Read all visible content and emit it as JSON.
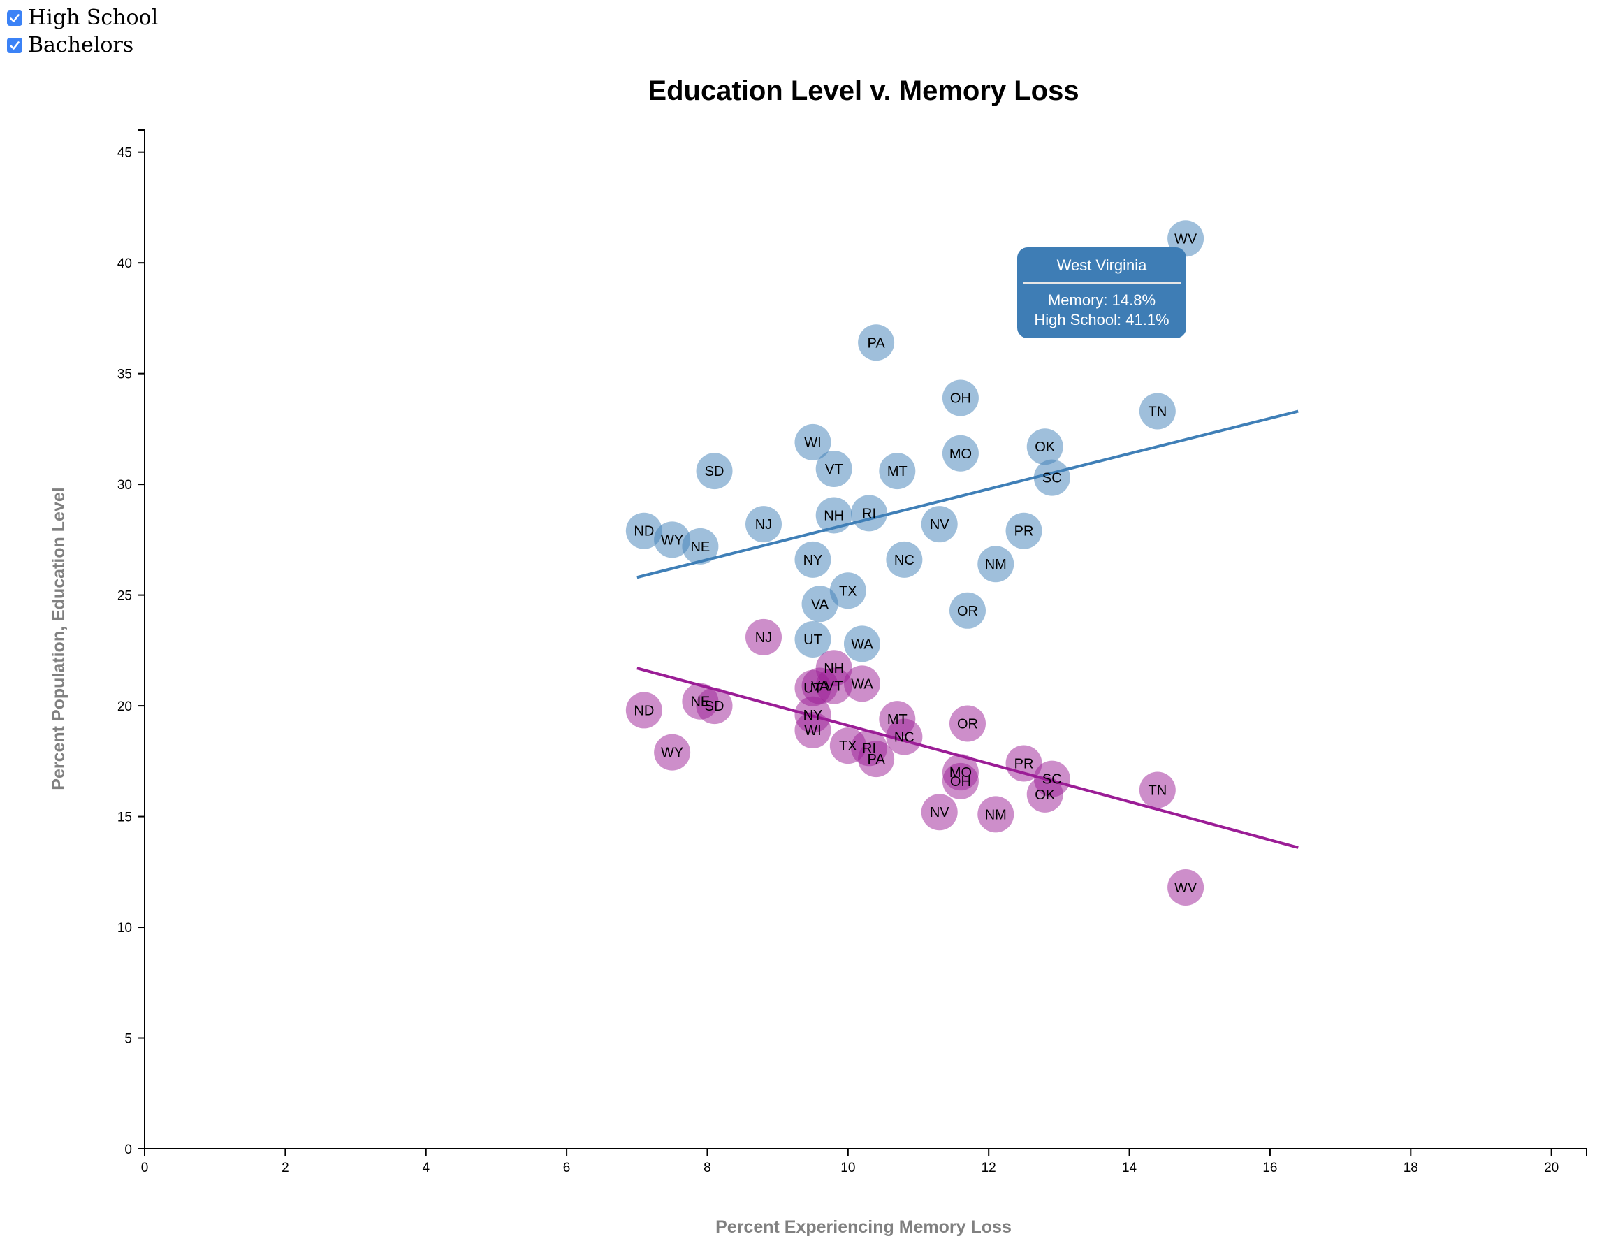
{
  "controls": [
    {
      "label": "High School",
      "checked": true
    },
    {
      "label": "Bachelors",
      "checked": true
    }
  ],
  "colors": {
    "high_school": "#3f7fb7",
    "bachelors": "#9b1d96",
    "axis": "#000000",
    "tooltip_bg": "#3e7db5"
  },
  "tooltip": {
    "title": "West Virginia",
    "line1": "Memory: 14.8%",
    "line2": "High School: 41.1%"
  },
  "chart_data": {
    "type": "scatter",
    "title": "Education Level v. Memory Loss",
    "xlabel": "Percent Experiencing Memory Loss",
    "ylabel": "Percent Population, Education Level",
    "xlim": [
      0,
      20.5
    ],
    "ylim": [
      0,
      46
    ],
    "x_ticks": [
      0,
      2,
      4,
      6,
      8,
      10,
      12,
      14,
      16,
      18,
      20
    ],
    "y_ticks": [
      0,
      5,
      10,
      15,
      20,
      25,
      30,
      35,
      40,
      45
    ],
    "grid": false,
    "series": [
      {
        "name": "High School",
        "color": "#3f7fb7",
        "trendline": [
          [
            7.0,
            25.8
          ],
          [
            16.4,
            33.3
          ]
        ],
        "points": [
          {
            "label": "WV",
            "x": 14.8,
            "y": 41.1
          },
          {
            "label": "PA",
            "x": 10.4,
            "y": 36.4
          },
          {
            "label": "OH",
            "x": 11.6,
            "y": 33.9
          },
          {
            "label": "TN",
            "x": 14.4,
            "y": 33.3
          },
          {
            "label": "WI",
            "x": 9.5,
            "y": 31.9
          },
          {
            "label": "OK",
            "x": 12.8,
            "y": 31.7
          },
          {
            "label": "MO",
            "x": 11.6,
            "y": 31.4
          },
          {
            "label": "SD",
            "x": 8.1,
            "y": 30.6
          },
          {
            "label": "VT",
            "x": 9.8,
            "y": 30.7
          },
          {
            "label": "MT",
            "x": 10.7,
            "y": 30.6
          },
          {
            "label": "SC",
            "x": 12.9,
            "y": 30.3
          },
          {
            "label": "NH",
            "x": 9.8,
            "y": 28.6
          },
          {
            "label": "RI",
            "x": 10.3,
            "y": 28.7
          },
          {
            "label": "NJ",
            "x": 8.8,
            "y": 28.2
          },
          {
            "label": "NV",
            "x": 11.3,
            "y": 28.2
          },
          {
            "label": "ND",
            "x": 7.1,
            "y": 27.9
          },
          {
            "label": "PR",
            "x": 12.5,
            "y": 27.9
          },
          {
            "label": "WY",
            "x": 7.5,
            "y": 27.5
          },
          {
            "label": "NE",
            "x": 7.9,
            "y": 27.2
          },
          {
            "label": "NY",
            "x": 9.5,
            "y": 26.6
          },
          {
            "label": "NC",
            "x": 10.8,
            "y": 26.6
          },
          {
            "label": "NM",
            "x": 12.1,
            "y": 26.4
          },
          {
            "label": "TX",
            "x": 10.0,
            "y": 25.2
          },
          {
            "label": "VA",
            "x": 9.6,
            "y": 24.6
          },
          {
            "label": "OR",
            "x": 11.7,
            "y": 24.3
          },
          {
            "label": "UT",
            "x": 9.5,
            "y": 23.0
          },
          {
            "label": "WA",
            "x": 10.2,
            "y": 22.8
          }
        ]
      },
      {
        "name": "Bachelors",
        "color": "#9b1d96",
        "trendline": [
          [
            7.0,
            21.7
          ],
          [
            16.4,
            13.6
          ]
        ],
        "points": [
          {
            "label": "NJ",
            "x": 8.8,
            "y": 23.1
          },
          {
            "label": "NH",
            "x": 9.8,
            "y": 21.7
          },
          {
            "label": "WA",
            "x": 10.2,
            "y": 21.0
          },
          {
            "label": "VT",
            "x": 9.8,
            "y": 20.9
          },
          {
            "label": "VA",
            "x": 9.6,
            "y": 20.9
          },
          {
            "label": "UT",
            "x": 9.5,
            "y": 20.8
          },
          {
            "label": "NE",
            "x": 7.9,
            "y": 20.2
          },
          {
            "label": "SD",
            "x": 8.1,
            "y": 20.0
          },
          {
            "label": "ND",
            "x": 7.1,
            "y": 19.8
          },
          {
            "label": "NY",
            "x": 9.5,
            "y": 19.6
          },
          {
            "label": "MT",
            "x": 10.7,
            "y": 19.4
          },
          {
            "label": "OR",
            "x": 11.7,
            "y": 19.2
          },
          {
            "label": "WI",
            "x": 9.5,
            "y": 18.9
          },
          {
            "label": "NC",
            "x": 10.8,
            "y": 18.6
          },
          {
            "label": "TX",
            "x": 10.0,
            "y": 18.2
          },
          {
            "label": "RI",
            "x": 10.3,
            "y": 18.1
          },
          {
            "label": "WY",
            "x": 7.5,
            "y": 17.9
          },
          {
            "label": "PA",
            "x": 10.4,
            "y": 17.6
          },
          {
            "label": "PR",
            "x": 12.5,
            "y": 17.4
          },
          {
            "label": "MO",
            "x": 11.6,
            "y": 17.0
          },
          {
            "label": "SC",
            "x": 12.9,
            "y": 16.7
          },
          {
            "label": "OH",
            "x": 11.6,
            "y": 16.6
          },
          {
            "label": "TN",
            "x": 14.4,
            "y": 16.2
          },
          {
            "label": "OK",
            "x": 12.8,
            "y": 16.0
          },
          {
            "label": "NV",
            "x": 11.3,
            "y": 15.2
          },
          {
            "label": "NM",
            "x": 12.1,
            "y": 15.1
          },
          {
            "label": "WV",
            "x": 14.8,
            "y": 11.8
          }
        ]
      }
    ]
  }
}
